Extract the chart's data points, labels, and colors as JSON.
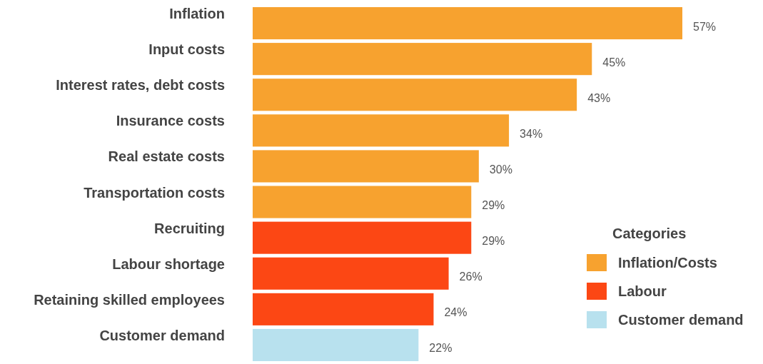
{
  "chart_data": {
    "type": "bar",
    "orientation": "horizontal",
    "legend": "bottom right",
    "legend_title": "Categories",
    "categories": [
      "Inflation",
      "Input costs",
      "Interest rates, debt costs",
      "Insurance costs",
      "Real estate costs",
      "Transportation costs",
      "Recruiting",
      "Labour shortage",
      "Retaining skilled employees",
      "Customer demand"
    ],
    "series": [
      {
        "name": "Inflation/Costs",
        "color": "#f7a22f",
        "values": [
          57,
          45,
          43,
          34,
          30,
          29,
          null,
          null,
          null,
          null
        ],
        "value_labels": [
          "57%",
          "45%",
          "43%",
          "34%",
          "30%",
          "29%",
          null,
          null,
          null,
          null
        ]
      },
      {
        "name": "Labour",
        "color": "#fc4714",
        "values": [
          null,
          null,
          null,
          null,
          null,
          null,
          29,
          26,
          24,
          null
        ],
        "value_labels": [
          null,
          null,
          null,
          null,
          null,
          null,
          "29%",
          "26%",
          "24%",
          null
        ]
      },
      {
        "name": "Customer demand",
        "color": "#b8e1ee",
        "values": [
          null,
          null,
          null,
          null,
          null,
          null,
          null,
          null,
          null,
          22
        ],
        "value_labels": [
          null,
          null,
          null,
          null,
          null,
          null,
          null,
          null,
          null,
          "22%"
        ]
      }
    ]
  }
}
